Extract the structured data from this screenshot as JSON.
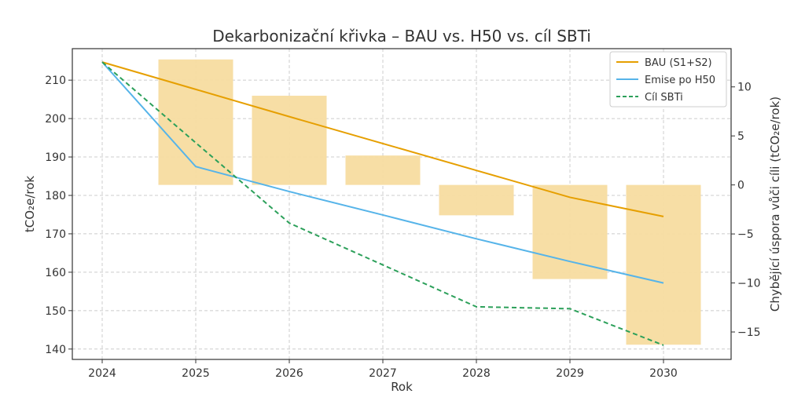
{
  "chart_data": {
    "type": "line+bar",
    "title": "Dekarbonizační křivka – BAU vs. H50 vs. cíl SBTi",
    "xlabel": "Rok",
    "ylabel_left": "tCO₂e/rok",
    "ylabel_right": "Chybějící úspora vůči cíli (tCO₂e/rok)",
    "categories": [
      "2024",
      "2025",
      "2026",
      "2027",
      "2028",
      "2029",
      "2030"
    ],
    "x": [
      2024,
      2025,
      2026,
      2027,
      2028,
      2029,
      2030
    ],
    "ylim_left": [
      137.3,
      218.2
    ],
    "yticks_left": [
      "140",
      "150",
      "160",
      "170",
      "180",
      "190",
      "200",
      "210"
    ],
    "ylim_right": [
      -17.8,
      13.9
    ],
    "yticks_right": [
      "−15",
      "−10",
      "−5",
      "0",
      "5",
      "10"
    ],
    "yticks_right_values": [
      -15,
      -10,
      -5,
      0,
      5,
      10
    ],
    "grid": true,
    "legend_position": "top-right",
    "series": [
      {
        "name": "BAU (S1+S2)",
        "axis": "left",
        "style": "solid",
        "color": "#E69F00",
        "values": [
          214.7,
          207.6,
          200.5,
          193.5,
          186.5,
          179.5,
          174.5
        ]
      },
      {
        "name": "Emise po H50",
        "axis": "left",
        "style": "solid",
        "color": "#56B4E9",
        "values": [
          214.7,
          187.5,
          181.0,
          174.9,
          168.7,
          162.8,
          157.2
        ]
      },
      {
        "name": "Cíl SBTi",
        "axis": "left",
        "style": "dashed",
        "color": "#2CA05A",
        "values": [
          214.7,
          193.7,
          172.8,
          161.9,
          151.0,
          150.5,
          141.0
        ]
      }
    ],
    "bars": {
      "axis": "right",
      "color": "#F7DCA0",
      "x": [
        2025,
        2026,
        2027,
        2028,
        2029,
        2030
      ],
      "values": [
        12.8,
        9.1,
        3.0,
        -3.1,
        -9.6,
        -16.3
      ]
    }
  }
}
